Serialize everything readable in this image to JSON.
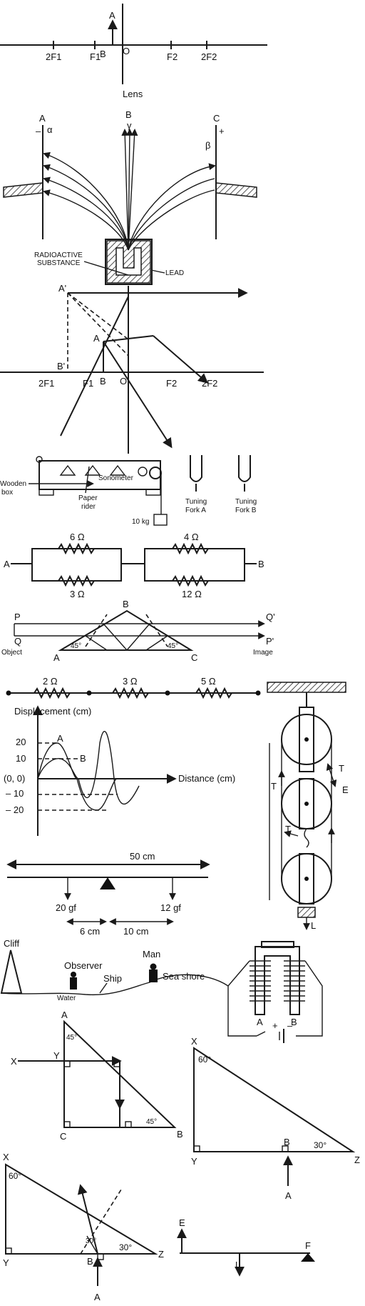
{
  "lens_diagram": {
    "object_label": "A",
    "base_label": "B",
    "origin_label": "O",
    "marks": [
      "2F1",
      "F1",
      "F2",
      "2F2"
    ],
    "lens_label": "Lens"
  },
  "radiation": {
    "plate_left": "A",
    "plate_center": "B",
    "plate_right": "C",
    "minus": "–",
    "plus": "+",
    "alpha": "α",
    "gamma": "γ",
    "beta": "β",
    "source_line1": "RADIOACTIVE",
    "source_line2": "SUBSTANCE",
    "lead": "LEAD"
  },
  "ray_diagram": {
    "image_top": "A'",
    "image_base": "B'",
    "object_top": "A",
    "object_base": "B",
    "origin": "O",
    "marks": [
      "2F1",
      "F1",
      "F2",
      "2F2"
    ]
  },
  "sonometer": {
    "box_line1": "Wooden",
    "box_line2": "box",
    "name": "Sonometer",
    "rider_line1": "Paper",
    "rider_line2": "rider",
    "mass": "10 kg",
    "fork_a_line1": "Tuning",
    "fork_a_line2": "Fork A",
    "fork_b_line1": "Tuning",
    "fork_b_line2": "Fork B"
  },
  "resistor_network": {
    "r1": "6 Ω",
    "r2": "3 Ω",
    "r3": "4 Ω",
    "r4": "12 Ω",
    "left": "A",
    "right": "B"
  },
  "prism": {
    "apex": "B",
    "left": "A",
    "right": "C",
    "angle_left": "45°",
    "angle_right": "45°",
    "in_p": "P",
    "in_q": "Q",
    "out_q": "Q'",
    "out_p": "P'",
    "object": "Object",
    "image": "Image"
  },
  "series_resistors": {
    "r1": "2 Ω",
    "r2": "3 Ω",
    "r3": "5 Ω"
  },
  "wave": {
    "ylabel": "Displacement (cm)",
    "xlabel": "Distance (cm)",
    "origin": "(0, 0)",
    "point_a": "A",
    "point_b": "B",
    "ticks": [
      "20",
      "10",
      "– 10",
      "– 20"
    ]
  },
  "pulley": {
    "t1": "T",
    "t2": "T",
    "t3": "T",
    "e": "E",
    "l": "L"
  },
  "lever": {
    "length": "50 cm",
    "w1": "20 gf",
    "w2": "12 gf",
    "d1": "6 cm",
    "d2": "10 cm"
  },
  "echo": {
    "cliff": "Cliff",
    "observer": "Observer",
    "ship": "Ship",
    "man": "Man",
    "shore": "Sea shore",
    "water": "Water"
  },
  "electromagnet": {
    "a": "A",
    "b": "B",
    "plus": "+",
    "minus": "–"
  },
  "prism_path": {
    "a": "A",
    "angle_a": "45°",
    "x": "X",
    "y": "Y",
    "c": "C",
    "b": "B",
    "angle_b": "45°"
  },
  "right_prism1": {
    "x": "X",
    "angle_x": "60°",
    "y": "Y",
    "b": "B",
    "angle_z": "30°",
    "z": "Z",
    "a": "A"
  },
  "right_prism2": {
    "x": "X",
    "angle_x": "60°",
    "y": "Y",
    "b": "B",
    "angle_b": "30°",
    "angle_z": "30°",
    "z": "Z",
    "a": "A"
  },
  "beam": {
    "e": "E",
    "f": "F",
    "l": "L"
  }
}
